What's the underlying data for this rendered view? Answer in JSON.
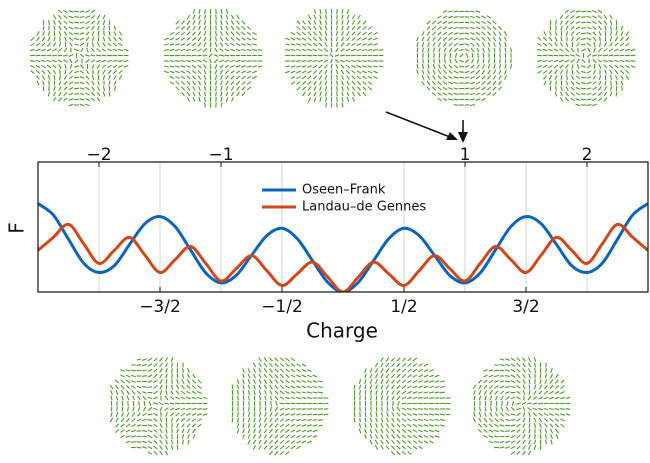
{
  "chart_data": {
    "type": "line",
    "xlabel": "Charge",
    "ylabel": "F",
    "x": [
      -2.5,
      -2.375,
      -2.25,
      -2.125,
      -2,
      -1.875,
      -1.75,
      -1.625,
      -1.5,
      -1.375,
      -1.25,
      -1.125,
      -1,
      -0.875,
      -0.75,
      -0.625,
      -0.5,
      -0.375,
      -0.25,
      -0.125,
      0,
      0.125,
      0.25,
      0.375,
      0.5,
      0.625,
      0.75,
      0.875,
      1,
      1.125,
      1.25,
      1.375,
      1.5,
      1.625,
      1.75,
      1.875,
      2,
      2.125,
      2.25,
      2.375,
      2.5
    ],
    "series": [
      {
        "name": "Oseen–Frank",
        "color": "#0a64c0",
        "values": [
          0.68,
          0.593,
          0.406,
          0.221,
          0.15,
          0.202,
          0.365,
          0.524,
          0.58,
          0.502,
          0.324,
          0.147,
          0.07,
          0.128,
          0.282,
          0.433,
          0.49,
          0.41,
          0.241,
          0.074,
          0,
          0.074,
          0.241,
          0.41,
          0.49,
          0.433,
          0.282,
          0.128,
          0.07,
          0.147,
          0.324,
          0.502,
          0.58,
          0.524,
          0.365,
          0.202,
          0.15,
          0.221,
          0.406,
          0.593,
          0.68
        ]
      },
      {
        "name": "Landau–de Gennes",
        "color": "#d4461a",
        "values": [
          0.32,
          0.42,
          0.52,
          0.37,
          0.22,
          0.32,
          0.42,
          0.285,
          0.15,
          0.25,
          0.35,
          0.22,
          0.085,
          0.18,
          0.28,
          0.165,
          0.05,
          0.14,
          0.23,
          0.115,
          0,
          0.115,
          0.23,
          0.14,
          0.05,
          0.165,
          0.28,
          0.18,
          0.085,
          0.22,
          0.35,
          0.25,
          0.15,
          0.285,
          0.42,
          0.32,
          0.22,
          0.37,
          0.52,
          0.42,
          0.32
        ]
      }
    ],
    "xlim": [
      -2.5,
      2.5
    ],
    "ylim": [
      0,
      1
    ],
    "xticks": [
      {
        "value": -1.5,
        "label": "−3/2"
      },
      {
        "value": -0.5,
        "label": "−1/2"
      },
      {
        "value": 0.5,
        "label": "1/2"
      },
      {
        "value": 1.5,
        "label": "3/2"
      }
    ],
    "xticks_top": [
      {
        "value": -2,
        "label": "−2"
      },
      {
        "value": -1,
        "label": "−1"
      },
      1,
      2
    ],
    "grid": true
  }
}
